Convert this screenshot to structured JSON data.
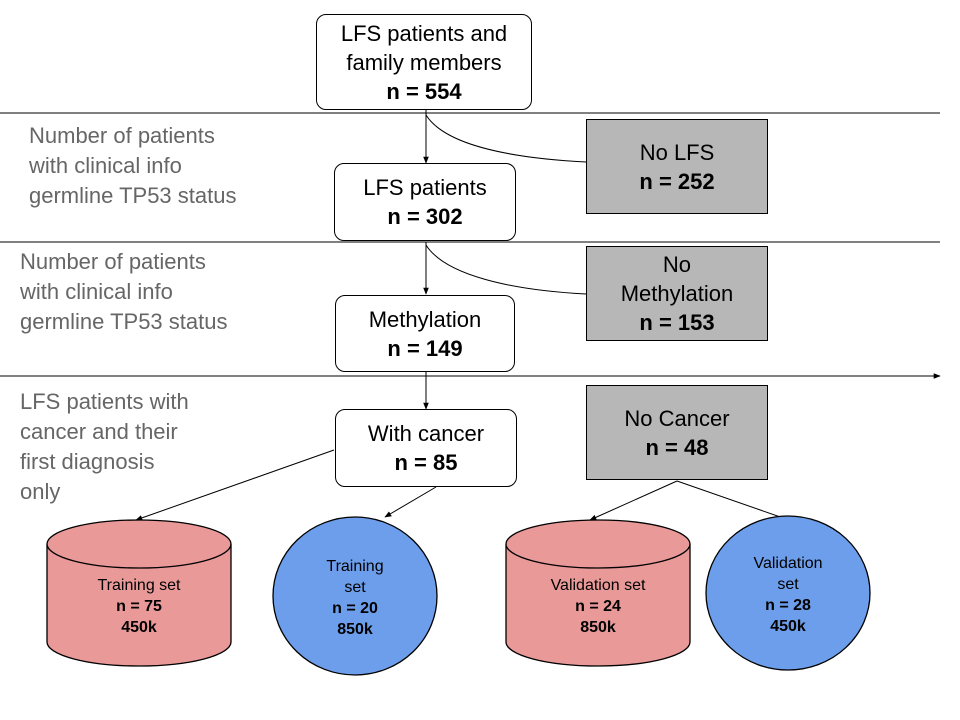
{
  "colors": {
    "excluded_box": "#b7b7b7",
    "cylinder_fill": "#ea9999",
    "circle_fill": "#6d9eeb",
    "side_note_text": "#666666"
  },
  "nodes": {
    "root": {
      "label": "LFS patients and\nfamily members",
      "count": "n = 554"
    },
    "lfs_patients": {
      "label": "LFS patients",
      "count": "n = 302"
    },
    "no_lfs": {
      "label": "No LFS",
      "count": "n = 252"
    },
    "methylation": {
      "label": "Methylation",
      "count": "n = 149"
    },
    "no_methylation": {
      "label": "No\nMethylation",
      "count": "n = 153"
    },
    "with_cancer": {
      "label": "With cancer",
      "count": "n = 85"
    },
    "no_cancer": {
      "label": "No Cancer",
      "count": "n = 48"
    }
  },
  "side_notes": {
    "note1": "Number of patients\nwith clinical info\ngermline TP53 status",
    "note2": "Number of patients\nwith clinical info\ngermline TP53 status",
    "note3": "LFS patients with\ncancer and their\nfirst diagnosis\nonly"
  },
  "datasets": {
    "training_450k": {
      "label": "Training set",
      "count": "n = 75",
      "platform": "450k"
    },
    "training_850k": {
      "label": "Training\nset",
      "count": "n = 20",
      "platform": "850k"
    },
    "validation_850k": {
      "label": "Validation set",
      "count": "n = 24",
      "platform": "850k"
    },
    "validation_450k": {
      "label": "Validation\nset",
      "count": "n = 28",
      "platform": "450k"
    }
  }
}
